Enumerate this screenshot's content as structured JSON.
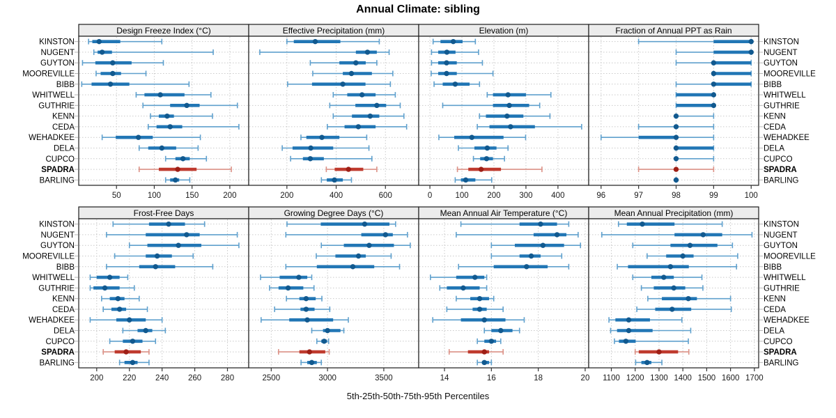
{
  "chart_data": {
    "type": "dotplot",
    "title": "Annual Climate: sibling",
    "x_axis_note": "5th-25th-50th-75th-95th Percentiles",
    "percentile_labels": [
      "5th",
      "25th",
      "50th",
      "75th",
      "95th"
    ],
    "stations": [
      "KINSTON",
      "NUGENT",
      "GUYTON",
      "MOOREVILLE",
      "BIBB",
      "WHITWELL",
      "GUTHRIE",
      "KENN",
      "CEDA",
      "WEHADKEE",
      "DELA",
      "CUPCO",
      "SPADRA",
      "BARLING"
    ],
    "highlight_station": "SPADRA",
    "colors": {
      "normal": {
        "whisker": "#5fa0cd",
        "box": "#2176b5",
        "median": "#11598f"
      },
      "highlight": {
        "whisker": "#dc9186",
        "box": "#bf3a2e",
        "median": "#9e1f16"
      },
      "strip_bg": "#ececec",
      "border": "#1c1c1c",
      "grid": "#c9c9c9",
      "y_tick": "#b5b5b5",
      "text": "#000000"
    },
    "panels": [
      {
        "id": "design-freeze-index",
        "strip_label": "Design Freeze Index (°C)",
        "row": 0,
        "col": 0,
        "ticks": [
          50,
          100,
          150,
          200
        ],
        "xlim": [
          0,
          225
        ],
        "values": [
          [
            13,
            18,
            27,
            55,
            110
          ],
          [
            20,
            25,
            31,
            44,
            178
          ],
          [
            5,
            22,
            45,
            70,
            112
          ],
          [
            23,
            29,
            45,
            56,
            89
          ],
          [
            4,
            17,
            42,
            67,
            146
          ],
          [
            76,
            87,
            108,
            140,
            175
          ],
          [
            85,
            121,
            143,
            160,
            210
          ],
          [
            95,
            106,
            117,
            126,
            177
          ],
          [
            92,
            103,
            121,
            137,
            212
          ],
          [
            31,
            49,
            79,
            98,
            161
          ],
          [
            80,
            92,
            110,
            129,
            158
          ],
          [
            115,
            128,
            138,
            147,
            169
          ],
          [
            80,
            106,
            131,
            156,
            202
          ],
          [
            115,
            121,
            128,
            133,
            147
          ]
        ]
      },
      {
        "id": "effective-precipitation",
        "strip_label": "Effective Precipitation (mm)",
        "row": 0,
        "col": 1,
        "ticks": [
          200,
          400,
          600
        ],
        "xlim": [
          45,
          735
        ],
        "values": [
          [
            200,
            228,
            315,
            417,
            575
          ],
          [
            90,
            480,
            527,
            565,
            615
          ],
          [
            295,
            413,
            480,
            520,
            565
          ],
          [
            305,
            427,
            462,
            545,
            630
          ],
          [
            203,
            302,
            427,
            519,
            620
          ],
          [
            388,
            445,
            505,
            560,
            640
          ],
          [
            374,
            478,
            565,
            603,
            660
          ],
          [
            388,
            464,
            538,
            575,
            675
          ],
          [
            364,
            434,
            490,
            560,
            686
          ],
          [
            257,
            279,
            342,
            413,
            524
          ],
          [
            181,
            223,
            297,
            388,
            533
          ],
          [
            215,
            265,
            295,
            350,
            545
          ],
          [
            360,
            394,
            450,
            510,
            565
          ],
          [
            340,
            362,
            393,
            427,
            462
          ]
        ]
      },
      {
        "id": "elevation",
        "strip_label": "Elevation (m)",
        "row": 0,
        "col": 2,
        "ticks": [
          0,
          100,
          200,
          300,
          400
        ],
        "xlim": [
          -35,
          496
        ],
        "values": [
          [
            10,
            33,
            73,
            102,
            142
          ],
          [
            5,
            26,
            53,
            80,
            152
          ],
          [
            5,
            26,
            52,
            84,
            164
          ],
          [
            4,
            26,
            52,
            84,
            197
          ],
          [
            13,
            40,
            79,
            124,
            155
          ],
          [
            179,
            197,
            244,
            300,
            378
          ],
          [
            40,
            197,
            248,
            310,
            343
          ],
          [
            155,
            175,
            241,
            292,
            375
          ],
          [
            148,
            186,
            252,
            328,
            474
          ],
          [
            28,
            76,
            131,
            230,
            299
          ],
          [
            89,
            139,
            179,
            208,
            244
          ],
          [
            136,
            157,
            177,
            197,
            233
          ],
          [
            86,
            120,
            160,
            222,
            350
          ],
          [
            79,
            97,
            112,
            142,
            193
          ]
        ]
      },
      {
        "id": "fraction-ppt-rain",
        "strip_label": "Fraction of Annual PPT as Rain",
        "row": 0,
        "col": 3,
        "ticks": [
          96,
          97,
          98,
          99,
          100
        ],
        "xlim": [
          95.67,
          100.2
        ],
        "values": [
          [
            97,
            99,
            100,
            100,
            100
          ],
          [
            98,
            99,
            100,
            100,
            100
          ],
          [
            98,
            99,
            99,
            100,
            100
          ],
          [
            99,
            99,
            99,
            100,
            100
          ],
          [
            98,
            99,
            99,
            100,
            100
          ],
          [
            98,
            98,
            99,
            99,
            99
          ],
          [
            98,
            98,
            99,
            99,
            99
          ],
          [
            98,
            98,
            98,
            98,
            99
          ],
          [
            97,
            98,
            98,
            98,
            99
          ],
          [
            96,
            97,
            98,
            98,
            99
          ],
          [
            98,
            98,
            98,
            99,
            99
          ],
          [
            98,
            98,
            98,
            98,
            99
          ],
          [
            97,
            98,
            98,
            98,
            99
          ],
          [
            98,
            98,
            98,
            98,
            98
          ]
        ]
      },
      {
        "id": "frost-free-days",
        "strip_label": "Frost-Free Days",
        "row": 1,
        "col": 0,
        "ticks": [
          200,
          220,
          240,
          260,
          280
        ],
        "xlim": [
          189,
          293
        ],
        "values": [
          [
            210,
            232,
            244,
            254,
            266
          ],
          [
            206,
            230,
            255,
            263,
            286
          ],
          [
            220,
            231,
            250,
            264,
            287
          ],
          [
            211,
            230,
            237,
            246,
            259
          ],
          [
            206,
            226,
            236,
            248,
            271
          ],
          [
            196,
            200,
            208,
            214,
            219
          ],
          [
            196,
            198,
            205,
            214,
            223
          ],
          [
            203,
            208,
            213,
            217,
            226
          ],
          [
            204,
            209,
            214,
            218,
            231
          ],
          [
            196,
            212,
            220,
            230,
            240
          ],
          [
            216,
            225,
            230,
            234,
            242
          ],
          [
            208,
            216,
            222,
            228,
            236
          ],
          [
            204,
            211,
            218,
            227,
            232
          ],
          [
            214,
            217,
            222,
            225,
            232
          ]
        ]
      },
      {
        "id": "growing-degree-days",
        "strip_label": "Growing Degree Days (°C)",
        "row": 1,
        "col": 1,
        "ticks": [
          2500,
          3000,
          3500
        ],
        "xlim": [
          2300,
          3810
        ],
        "values": [
          [
            2640,
            2940,
            3330,
            3550,
            3605
          ],
          [
            2630,
            3300,
            3515,
            3580,
            3710
          ],
          [
            2945,
            3145,
            3370,
            3590,
            3735
          ],
          [
            2900,
            3070,
            3275,
            3340,
            3565
          ],
          [
            2630,
            2905,
            3225,
            3415,
            3640
          ],
          [
            2405,
            2575,
            2745,
            2820,
            2860
          ],
          [
            2485,
            2565,
            2650,
            2785,
            2880
          ],
          [
            2635,
            2750,
            2810,
            2895,
            2950
          ],
          [
            2530,
            2760,
            2810,
            2885,
            3020
          ],
          [
            2410,
            2660,
            2820,
            3050,
            3185
          ],
          [
            2860,
            2960,
            3000,
            3115,
            3145
          ],
          [
            2905,
            2945,
            2970,
            2995,
            3010
          ],
          [
            2565,
            2750,
            2840,
            2980,
            3015
          ],
          [
            2765,
            2820,
            2860,
            2905,
            2945
          ]
        ]
      },
      {
        "id": "mean-annual-air-temperature",
        "strip_label": "Mean Annual Air Temperature (°C)",
        "row": 1,
        "col": 2,
        "ticks": [
          14,
          16,
          18,
          20
        ],
        "xlim": [
          12.9,
          20.15
        ],
        "values": [
          [
            14.7,
            17.2,
            18.1,
            18.8,
            19.3
          ],
          [
            14.5,
            17.8,
            18.8,
            19.2,
            19.7
          ],
          [
            16.0,
            17.0,
            18.2,
            19.1,
            19.8
          ],
          [
            16.0,
            17.2,
            17.7,
            18.1,
            19.0
          ],
          [
            14.6,
            16.1,
            17.5,
            18.4,
            19.3
          ],
          [
            13.4,
            14.5,
            15.3,
            15.7,
            15.8
          ],
          [
            13.8,
            14.1,
            14.8,
            15.5,
            15.8
          ],
          [
            14.5,
            15.1,
            15.5,
            15.9,
            16.1
          ],
          [
            14.1,
            15.2,
            15.5,
            15.8,
            16.5
          ],
          [
            13.5,
            14.7,
            15.7,
            16.6,
            17.4
          ],
          [
            15.7,
            16.0,
            16.4,
            16.9,
            17.2
          ],
          [
            15.4,
            15.7,
            16.0,
            16.2,
            16.4
          ],
          [
            14.2,
            15.0,
            15.7,
            15.9,
            16.5
          ],
          [
            15.4,
            15.6,
            15.7,
            15.9,
            16.0
          ]
        ]
      },
      {
        "id": "mean-annual-precipitation",
        "strip_label": "Mean Annual Precipitation (mm)",
        "row": 1,
        "col": 3,
        "ticks": [
          1100,
          1200,
          1300,
          1400,
          1500,
          1600,
          1700
        ],
        "xlim": [
          1005,
          1718
        ],
        "values": [
          [
            1130,
            1165,
            1230,
            1365,
            1565
          ],
          [
            1060,
            1365,
            1485,
            1565,
            1690
          ],
          [
            1190,
            1348,
            1430,
            1545,
            1608
          ],
          [
            1250,
            1330,
            1400,
            1445,
            1630
          ],
          [
            1125,
            1170,
            1348,
            1425,
            1625
          ],
          [
            1190,
            1268,
            1320,
            1362,
            1480
          ],
          [
            1226,
            1278,
            1362,
            1410,
            1484
          ],
          [
            1253,
            1312,
            1423,
            1459,
            1600
          ],
          [
            1207,
            1284,
            1355,
            1435,
            1603
          ],
          [
            1090,
            1117,
            1173,
            1262,
            1396
          ],
          [
            1097,
            1124,
            1173,
            1273,
            1433
          ],
          [
            1113,
            1132,
            1161,
            1202,
            1423
          ],
          [
            1200,
            1215,
            1300,
            1380,
            1425
          ],
          [
            1202,
            1226,
            1250,
            1268,
            1312
          ]
        ]
      }
    ]
  }
}
